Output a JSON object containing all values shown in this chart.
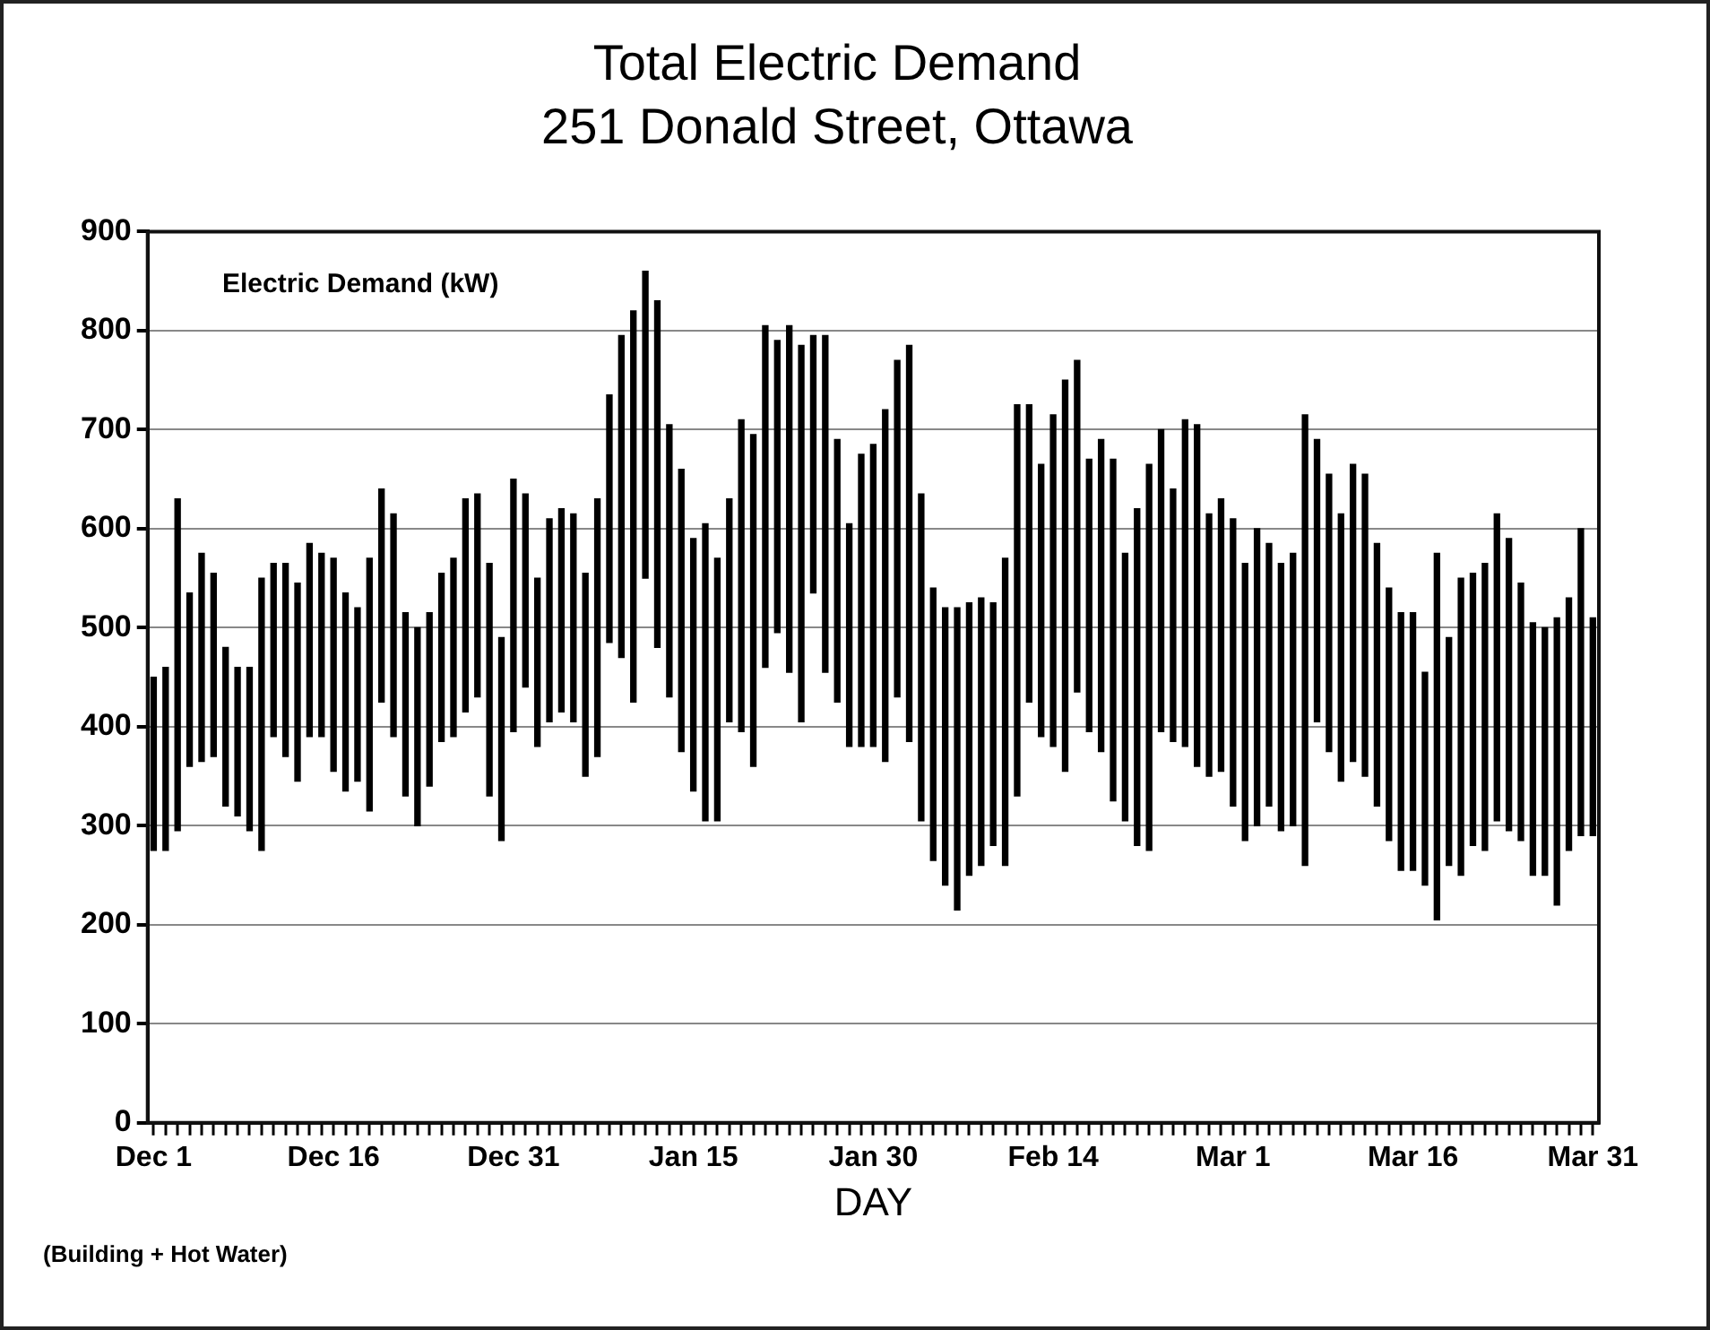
{
  "chart_data": {
    "type": "bar",
    "title": "Total Electric Demand",
    "subtitle": "251 Donald Street, Ottawa",
    "ylabel": "Electric Demand (kW)",
    "xlabel": "DAY",
    "annotations": [
      "(Building + Hot Water)"
    ],
    "categories": [
      "Dec 1",
      null,
      null,
      null,
      null,
      null,
      null,
      null,
      null,
      null,
      null,
      null,
      null,
      null,
      null,
      "Dec 16",
      null,
      null,
      null,
      null,
      null,
      null,
      null,
      null,
      null,
      null,
      null,
      null,
      null,
      null,
      "Dec 31",
      null,
      null,
      null,
      null,
      null,
      null,
      null,
      null,
      null,
      null,
      null,
      null,
      null,
      null,
      "Jan 15",
      null,
      null,
      null,
      null,
      null,
      null,
      null,
      null,
      null,
      null,
      null,
      null,
      null,
      null,
      "Jan 30",
      null,
      null,
      null,
      null,
      null,
      null,
      null,
      null,
      null,
      null,
      null,
      null,
      null,
      null,
      "Feb 14",
      null,
      null,
      null,
      null,
      null,
      null,
      null,
      null,
      null,
      null,
      null,
      null,
      null,
      null,
      "Mar 1",
      null,
      null,
      null,
      null,
      null,
      null,
      null,
      null,
      null,
      null,
      null,
      null,
      null,
      null,
      "Mar 16",
      null,
      null,
      null,
      null,
      null,
      null,
      null,
      null,
      null,
      null,
      null,
      null,
      null,
      null,
      "Mar 31"
    ],
    "base": [
      275,
      275,
      295,
      360,
      365,
      370,
      320,
      310,
      295,
      275,
      390,
      370,
      345,
      390,
      390,
      355,
      335,
      345,
      315,
      425,
      390,
      330,
      300,
      340,
      385,
      390,
      415,
      430,
      330,
      285,
      395,
      440,
      380,
      405,
      415,
      405,
      350,
      370,
      485,
      470,
      425,
      550,
      480,
      430,
      375,
      335,
      305,
      305,
      405,
      395,
      360,
      460,
      495,
      455,
      405,
      535,
      455,
      425,
      380,
      380,
      380,
      365,
      430,
      385,
      305,
      265,
      240,
      215,
      250,
      260,
      280,
      260,
      330,
      425,
      390,
      380,
      355,
      435,
      395,
      375,
      325,
      305,
      280,
      275,
      395,
      385,
      380,
      360,
      350,
      355,
      320,
      285,
      300,
      320,
      295,
      300,
      260,
      405,
      375,
      345,
      365,
      350,
      320,
      285,
      255,
      255,
      240,
      205,
      260,
      250,
      280,
      275,
      305,
      295,
      285,
      250,
      250,
      220,
      275,
      290,
      290
    ],
    "values": [
      175,
      185,
      335,
      175,
      210,
      185,
      160,
      150,
      165,
      275,
      175,
      195,
      200,
      195,
      185,
      215,
      200,
      175,
      255,
      215,
      225,
      185,
      200,
      175,
      170,
      180,
      215,
      205,
      235,
      205,
      255,
      195,
      170,
      205,
      205,
      210,
      205,
      260,
      250,
      325,
      395,
      310,
      350,
      275,
      285,
      255,
      300,
      265,
      225,
      315,
      335,
      345,
      295,
      350,
      380,
      260,
      340,
      265,
      225,
      295,
      305,
      355,
      340,
      400,
      330,
      275,
      280,
      305,
      275,
      270,
      245,
      310,
      395,
      300,
      275,
      335,
      395,
      335,
      275,
      315,
      345,
      270,
      340,
      390,
      305,
      255,
      330,
      345,
      265,
      275,
      290,
      280,
      300,
      265,
      270,
      275,
      455,
      285,
      280,
      270,
      300,
      305,
      265,
      255,
      260,
      260,
      215,
      370,
      230,
      300,
      275,
      290,
      310,
      295,
      260,
      255,
      250,
      290,
      255,
      310,
      220
    ],
    "color": "#000000",
    "ylim": [
      0,
      900
    ],
    "yticks": [
      0,
      100,
      200,
      300,
      400,
      500,
      600,
      700,
      800,
      900
    ],
    "grid": "y",
    "legend": false
  }
}
